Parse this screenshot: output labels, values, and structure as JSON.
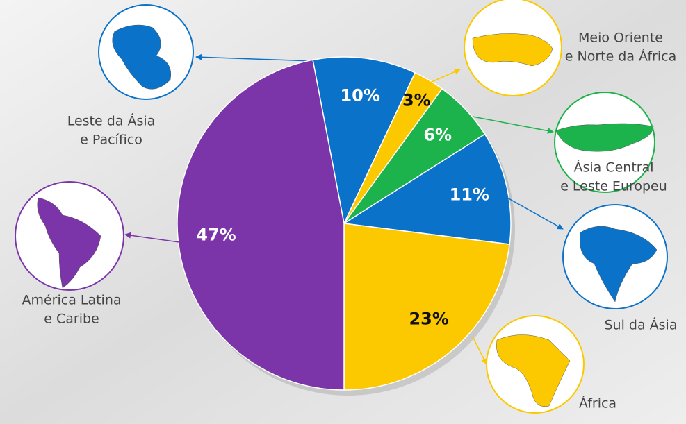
{
  "chart_data": {
    "type": "pie",
    "categories": [
      [
        "Leste da Ásia",
        "e Pacífico"
      ],
      [
        "Meio Oriente",
        "e Norte da África"
      ],
      [
        "Ásia Central",
        "e Leste Europeu"
      ],
      [
        "Sul da Ásia"
      ],
      [
        "África"
      ],
      [
        "América Latina",
        "e Caribe"
      ]
    ],
    "values": [
      10,
      3,
      6,
      11,
      23,
      47
    ],
    "value_labels": [
      "10%",
      "3%",
      "6%",
      "11%",
      "23%",
      "47%"
    ],
    "colors": [
      "#0b72c9",
      "#fcc800",
      "#1db34c",
      "#0b72c9",
      "#fcc800",
      "#7b35a8"
    ]
  }
}
